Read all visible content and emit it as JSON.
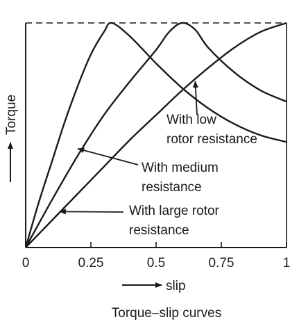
{
  "chart_data": {
    "type": "line",
    "title": "",
    "caption": "Torque–slip curves",
    "xlabel": "slip",
    "ylabel": "Torque",
    "xlim": [
      0,
      1
    ],
    "x_ticks": [
      "0",
      "0.25",
      "0.5",
      "0.75",
      "1"
    ],
    "x_tick_values": [
      0,
      0.25,
      0.5,
      0.75,
      1
    ],
    "ylim": [
      0,
      1
    ],
    "y_ticks_shown": false,
    "grid": false,
    "max_torque_dashed_line": 1.0,
    "line_color": "#1a1a1a",
    "series": [
      {
        "key": "low",
        "x": [
          0,
          0.05,
          0.1,
          0.15,
          0.2,
          0.25,
          0.3,
          0.33,
          0.4,
          0.5,
          0.6,
          0.7,
          0.8,
          0.9,
          1.0
        ],
        "y": [
          0,
          0.2,
          0.38,
          0.56,
          0.72,
          0.86,
          0.96,
          1.0,
          0.94,
          0.82,
          0.71,
          0.62,
          0.55,
          0.5,
          0.47
        ]
      },
      {
        "key": "medium",
        "x": [
          0,
          0.1,
          0.2,
          0.3,
          0.4,
          0.5,
          0.55,
          0.6,
          0.65,
          0.7,
          0.8,
          0.9,
          1.0
        ],
        "y": [
          0,
          0.21,
          0.41,
          0.59,
          0.74,
          0.88,
          0.96,
          1.0,
          0.97,
          0.89,
          0.78,
          0.7,
          0.65
        ]
      },
      {
        "key": "large",
        "x": [
          0,
          0.1,
          0.2,
          0.3,
          0.4,
          0.5,
          0.6,
          0.7,
          0.8,
          0.9,
          1.0
        ],
        "y": [
          0,
          0.12,
          0.24,
          0.36,
          0.48,
          0.59,
          0.7,
          0.8,
          0.89,
          0.96,
          1.0
        ]
      }
    ],
    "annotations": [
      {
        "lines": [
          "With low",
          "rotor resistance"
        ],
        "arrow_to": [
          0.65,
          0.74
        ]
      },
      {
        "lines": [
          "With medium",
          "resistance"
        ],
        "arrow_to": [
          0.2,
          0.44
        ]
      },
      {
        "lines": [
          "With large rotor",
          "resistance"
        ],
        "arrow_to": [
          0.13,
          0.16
        ]
      }
    ]
  }
}
